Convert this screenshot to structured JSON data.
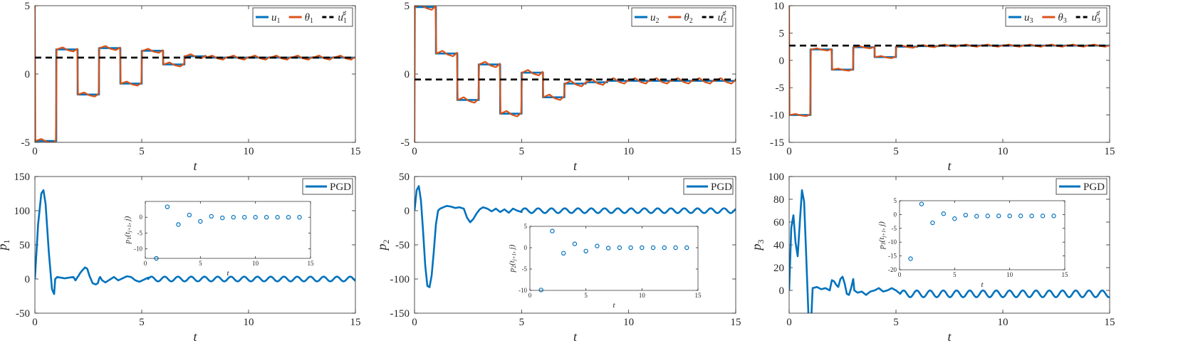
{
  "colors": {
    "blue": "#0072BD",
    "orange": "#D95319",
    "black": "#000000",
    "axis": "#262626",
    "grid_bg": "#ffffff"
  },
  "panels": [
    {
      "ylabel": "",
      "xlabel": "t",
      "xlim": [
        0,
        15
      ],
      "ylim": [
        -5,
        5
      ],
      "xticks": [
        0,
        5,
        10,
        15
      ],
      "yticks": [
        -5,
        0,
        5
      ],
      "legend": [
        {
          "label": "u",
          "sub": "1",
          "sup": "",
          "style": "solid",
          "color": "#0072BD"
        },
        {
          "label": "θ",
          "sub": "1",
          "sup": "",
          "style": "solid",
          "color": "#D95319"
        },
        {
          "label": "u",
          "sub": "1",
          "sup": "♯",
          "style": "dashed",
          "color": "#000000"
        }
      ],
      "chart_data": {
        "type": "line",
        "series": [
          {
            "name": "u1",
            "kind": "step",
            "values": [
              -4.9,
              1.8,
              -1.5,
              1.9,
              -0.7,
              1.7,
              0.7,
              1.3,
              1.2,
              1.2,
              1.2,
              1.2,
              1.2,
              1.2,
              1.2
            ]
          },
          {
            "name": "θ1",
            "kind": "wavy",
            "values": [
              -4.9,
              1.8,
              -1.5,
              1.9,
              -0.7,
              1.7,
              0.7,
              1.3,
              1.2,
              1.2,
              1.2,
              1.2,
              1.2,
              1.2,
              1.2
            ],
            "start": 5.0,
            "ripple": 0.15
          },
          {
            "name": "u1♯",
            "kind": "hline",
            "value": 1.2
          }
        ]
      }
    },
    {
      "ylabel": "",
      "xlabel": "t",
      "xlim": [
        0,
        15
      ],
      "ylim": [
        -5,
        5
      ],
      "xticks": [
        0,
        5,
        10,
        15
      ],
      "yticks": [
        -5,
        0,
        5
      ],
      "legend": [
        {
          "label": "u",
          "sub": "2",
          "sup": "",
          "style": "solid",
          "color": "#0072BD"
        },
        {
          "label": "θ",
          "sub": "2",
          "sup": "",
          "style": "solid",
          "color": "#D95319"
        },
        {
          "label": "u",
          "sub": "2",
          "sup": "♯",
          "style": "dashed",
          "color": "#000000"
        }
      ],
      "chart_data": {
        "type": "line",
        "series": [
          {
            "name": "u2",
            "kind": "step",
            "values": [
              4.9,
              1.5,
              -1.9,
              0.7,
              -2.9,
              0.1,
              -1.7,
              -0.7,
              -0.6,
              -0.5,
              -0.5,
              -0.5,
              -0.5,
              -0.5,
              -0.5
            ]
          },
          {
            "name": "θ2",
            "kind": "wavy",
            "values": [
              4.9,
              1.5,
              -1.9,
              0.7,
              -2.9,
              0.1,
              -1.7,
              -0.7,
              -0.6,
              -0.5,
              -0.5,
              -0.5,
              -0.5,
              -0.5,
              -0.5
            ],
            "start": -5.0,
            "ripple": 0.2
          },
          {
            "name": "u2♯",
            "kind": "hline",
            "value": -0.4
          }
        ]
      }
    },
    {
      "ylabel": "",
      "xlabel": "t",
      "xlim": [
        0,
        15
      ],
      "ylim": [
        -15,
        10
      ],
      "xticks": [
        0,
        5,
        10,
        15
      ],
      "yticks": [
        -15,
        -10,
        -5,
        0,
        5,
        10
      ],
      "legend": [
        {
          "label": "u",
          "sub": "3",
          "sup": "",
          "style": "solid",
          "color": "#0072BD"
        },
        {
          "label": "θ",
          "sub": "3",
          "sup": "",
          "style": "solid",
          "color": "#D95319"
        },
        {
          "label": "u",
          "sub": "3",
          "sup": "♯",
          "style": "dashed",
          "color": "#000000"
        }
      ],
      "chart_data": {
        "type": "line",
        "series": [
          {
            "name": "u3",
            "kind": "step",
            "values": [
              -10,
              2.0,
              -1.7,
              2.4,
              0.6,
              2.5,
              2.6,
              2.7,
              2.7,
              2.7,
              2.7,
              2.7,
              2.7,
              2.7,
              2.7
            ]
          },
          {
            "name": "θ3",
            "kind": "wavy",
            "values": [
              -10,
              2.0,
              -1.7,
              2.4,
              0.6,
              2.5,
              2.6,
              2.7,
              2.7,
              2.7,
              2.7,
              2.7,
              2.7,
              2.7,
              2.7
            ],
            "start": 10.0,
            "ripple": 0.2
          },
          {
            "name": "u3♯",
            "kind": "hline",
            "value": 2.7
          }
        ]
      }
    },
    {
      "ylabel": "p",
      "ysub": "1",
      "xlabel": "t",
      "xlim": [
        0,
        15
      ],
      "ylim": [
        -50,
        150
      ],
      "xticks": [
        0,
        5,
        10,
        15
      ],
      "yticks": [
        -50,
        0,
        50,
        100,
        150
      ],
      "legend": [
        {
          "label": "PGD",
          "sub": "",
          "sup": "",
          "style": "solid",
          "color": "#0072BD"
        }
      ],
      "chart_data": {
        "type": "line",
        "series": [
          {
            "name": "PGD",
            "kind": "samples",
            "x": [
              0,
              0.15,
              0.3,
              0.4,
              0.5,
              0.65,
              0.8,
              0.9,
              0.95,
              1.05,
              1.2,
              1.4,
              1.6,
              1.8,
              1.9,
              2.0,
              2.05,
              2.1,
              2.2,
              2.35,
              2.45,
              2.55,
              2.7,
              2.85,
              2.95,
              3.0,
              3.05,
              3.15,
              3.3,
              3.5,
              3.7,
              3.9,
              4.1,
              4.3,
              4.5,
              4.7,
              4.9,
              5.1,
              5.3
            ],
            "y": [
              0,
              80,
              125,
              130,
              110,
              40,
              -15,
              -22,
              0,
              3,
              2,
              1,
              2,
              3,
              -2,
              3,
              5,
              8,
              12,
              17,
              15,
              5,
              -6,
              -8,
              -6,
              0,
              3,
              -2,
              -5,
              -1,
              3,
              -2,
              1,
              4,
              3,
              -2,
              -4,
              -1,
              2
            ],
            "osc_from": 5.3,
            "osc_amp": 3.5,
            "osc_period": 0.62
          }
        ]
      },
      "inset": {
        "ylabel": "p",
        "ysub": "1",
        "ysubargs": "(t",
        "ysubargs2": "j+1",
        "ysubargs3": ", j)",
        "xlabel": "t",
        "xlim": [
          0,
          15
        ],
        "ylim": [
          -13,
          5
        ],
        "xticks": [
          0,
          5,
          10,
          15
        ],
        "yticks": [
          -10,
          -5,
          0
        ],
        "chart_data": {
          "type": "scatter",
          "x": [
            1,
            2,
            3,
            4,
            5,
            6,
            7,
            8,
            9,
            10,
            11,
            12,
            13,
            14
          ],
          "y": [
            -13,
            3.3,
            -2.3,
            0.7,
            -1.3,
            0.3,
            -0.2,
            0,
            0,
            0,
            0,
            0,
            0,
            0
          ]
        }
      }
    },
    {
      "ylabel": "p",
      "ysub": "2",
      "xlabel": "t",
      "xlim": [
        0,
        15
      ],
      "ylim": [
        -150,
        50
      ],
      "xticks": [
        0,
        5,
        10,
        15
      ],
      "yticks": [
        -150,
        -100,
        -50,
        0,
        50
      ],
      "legend": [
        {
          "label": "PGD",
          "sub": "",
          "sup": "",
          "style": "solid",
          "color": "#0072BD"
        }
      ],
      "chart_data": {
        "type": "line",
        "series": [
          {
            "name": "PGD",
            "kind": "samples",
            "x": [
              0,
              0.1,
              0.2,
              0.3,
              0.4,
              0.5,
              0.6,
              0.7,
              0.8,
              0.9,
              1.0,
              1.1,
              1.2,
              1.35,
              1.5,
              1.7,
              1.9,
              2.1,
              2.3,
              2.45,
              2.6,
              2.75,
              2.9,
              3.05,
              3.2,
              3.4,
              3.6,
              3.8,
              4.0,
              4.2,
              4.4,
              4.6,
              4.8,
              5.0
            ],
            "y": [
              0,
              30,
              36,
              15,
              -30,
              -80,
              -110,
              -112,
              -95,
              -60,
              -20,
              0,
              3,
              5,
              7,
              6,
              4,
              5,
              3,
              -10,
              -17,
              -12,
              -4,
              2,
              5,
              3,
              -1,
              3,
              -2,
              2,
              -3,
              3,
              0,
              -2
            ],
            "osc_from": 5.0,
            "osc_amp": 3.5,
            "osc_period": 0.62
          }
        ]
      },
      "inset": {
        "ylabel": "p",
        "ysub": "2",
        "ysubargs": "(t",
        "ysubargs2": "j+1",
        "ysubargs3": ", j)",
        "xlabel": "t",
        "xlim": [
          0,
          15
        ],
        "ylim": [
          -10,
          5
        ],
        "xticks": [
          0,
          5,
          10,
          15
        ],
        "yticks": [
          -10,
          -5,
          0,
          5
        ],
        "chart_data": {
          "type": "scatter",
          "x": [
            1,
            2,
            3,
            4,
            5,
            6,
            7,
            8,
            9,
            10,
            11,
            12,
            13,
            14
          ],
          "y": [
            -9.9,
            3.9,
            -1.3,
            0.9,
            -0.8,
            0.4,
            -0.1,
            0,
            0,
            0,
            0,
            0,
            0,
            0
          ]
        }
      }
    },
    {
      "ylabel": "p",
      "ysub": "3",
      "xlabel": "t",
      "xlim": [
        0,
        15
      ],
      "ylim": [
        -20,
        100
      ],
      "xticks": [
        0,
        5,
        10,
        15
      ],
      "yticks": [
        0,
        20,
        40,
        60,
        80,
        100
      ],
      "legend": [
        {
          "label": "PGD",
          "sub": "",
          "sup": "",
          "style": "solid",
          "color": "#0072BD"
        }
      ],
      "chart_data": {
        "type": "line",
        "series": [
          {
            "name": "PGD",
            "kind": "samples",
            "x": [
              0,
              0.1,
              0.2,
              0.3,
              0.4,
              0.5,
              0.6,
              0.7,
              0.8,
              0.9,
              0.95,
              1.0,
              1.1,
              1.3,
              1.5,
              1.7,
              1.9,
              2.0,
              2.1,
              2.2,
              2.3,
              2.4,
              2.5,
              2.6,
              2.7,
              2.8,
              2.9,
              3.0,
              3.05,
              3.2,
              3.4,
              3.6,
              3.8,
              4.0,
              4.2,
              4.4,
              4.6,
              4.8,
              5.0,
              5.2
            ],
            "y": [
              0,
              55,
              66,
              42,
              30,
              60,
              88,
              78,
              30,
              -20,
              -40,
              -40,
              2,
              3,
              1,
              2,
              0,
              9,
              8,
              5,
              3,
              10,
              12,
              6,
              -3,
              -4,
              2,
              10,
              0,
              -2,
              -1,
              -4,
              -1,
              0,
              2,
              -1,
              0,
              2,
              0,
              -3
            ],
            "osc_from": 5.2,
            "osc_amp": 3.0,
            "osc_period": 0.62,
            "osc_center": -3
          }
        ]
      },
      "inset": {
        "ylabel": "p",
        "ysub": "3",
        "ysubargs": "(t",
        "ysubargs2": "j+1",
        "ysubargs3": ", j)",
        "xlabel": "t",
        "xlim": [
          0,
          15
        ],
        "ylim": [
          -20,
          5
        ],
        "xticks": [
          0,
          5,
          10,
          15
        ],
        "yticks": [
          -20,
          -15,
          -10,
          -5,
          0,
          5
        ],
        "chart_data": {
          "type": "scatter",
          "x": [
            1,
            2,
            3,
            4,
            5,
            6,
            7,
            8,
            9,
            10,
            11,
            12,
            13,
            14
          ],
          "y": [
            -16,
            3.8,
            -3,
            0.3,
            -1.5,
            -0.2,
            -0.6,
            -0.5,
            -0.5,
            -0.5,
            -0.5,
            -0.5,
            -0.5,
            -0.5
          ]
        }
      }
    }
  ]
}
